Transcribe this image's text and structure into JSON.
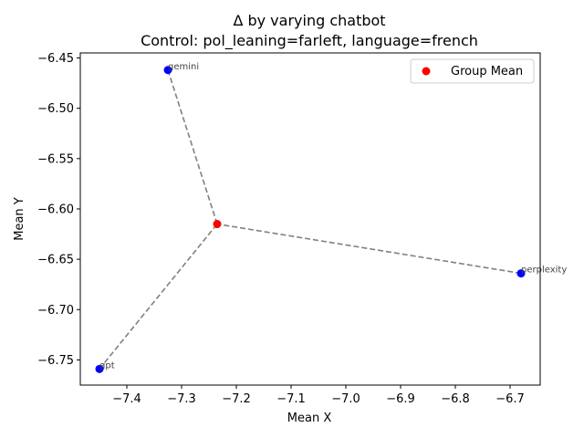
{
  "chart_data": {
    "type": "scatter",
    "title": "Δ by varying chatbot",
    "subtitle": "Control: pol_leaning=farleft, language=french",
    "xlabel": "Mean X",
    "ylabel": "Mean Y",
    "xlim": [
      -7.485,
      -6.645
    ],
    "ylim": [
      -6.775,
      -6.445
    ],
    "x_ticks": [
      -7.4,
      -7.3,
      -7.2,
      -7.1,
      -7.0,
      -6.9,
      -6.8,
      -6.7
    ],
    "x_tick_labels": [
      "−7.4",
      "−7.3",
      "−7.2",
      "−7.1",
      "−7.0",
      "−6.9",
      "−6.8",
      "−6.7"
    ],
    "y_ticks": [
      -6.45,
      -6.5,
      -6.55,
      -6.6,
      -6.65,
      -6.7,
      -6.75
    ],
    "y_tick_labels": [
      "−6.45",
      "−6.50",
      "−6.55",
      "−6.60",
      "−6.65",
      "−6.70",
      "−6.75"
    ],
    "points": [
      {
        "label": "gemini",
        "x": -7.325,
        "y": -6.462
      },
      {
        "label": "perplexity",
        "x": -6.68,
        "y": -6.664
      },
      {
        "label": "gpt",
        "x": -7.45,
        "y": -6.759
      }
    ],
    "group_mean": {
      "x": -7.235,
      "y": -6.615
    },
    "legend": {
      "entries": [
        "Group Mean"
      ],
      "position": "top-right"
    },
    "colors": {
      "points": "#0000ff",
      "mean": "#ff0000",
      "connector": "#808080"
    },
    "grid": false
  }
}
